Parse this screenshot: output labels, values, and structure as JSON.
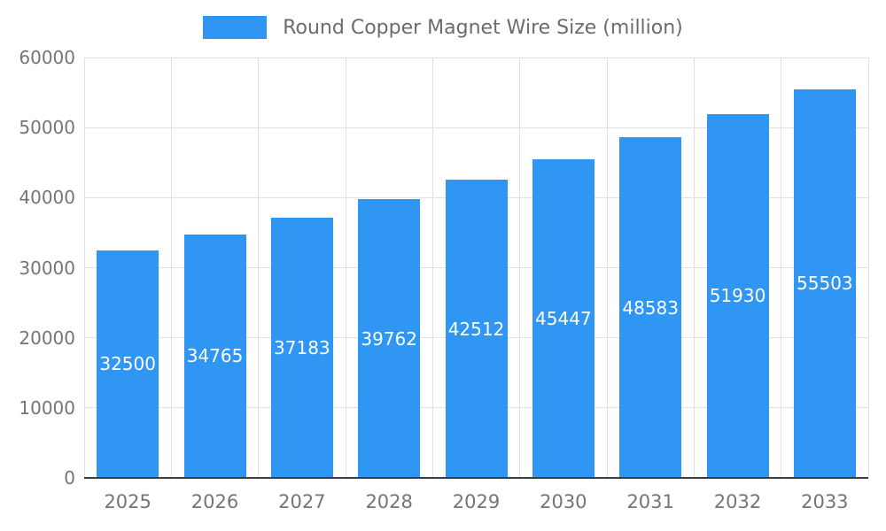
{
  "legend": {
    "label": "Round Copper Magnet Wire Size (million)"
  },
  "colors": {
    "bar": "#2F96F3",
    "value_label": "#ffffff",
    "axis_label": "#757575",
    "legend_label": "#6b6b6b",
    "gridline": "#e0e0e0",
    "baseline": "#3d3d3d"
  },
  "chart_data": {
    "type": "bar",
    "title": "Round Copper Magnet Wire Size (million)",
    "categories": [
      "2025",
      "2026",
      "2027",
      "2028",
      "2029",
      "2030",
      "2031",
      "2032",
      "2033"
    ],
    "values": [
      32500,
      34765,
      37183,
      39762,
      42512,
      45447,
      48583,
      51930,
      55503
    ],
    "xlabel": "",
    "ylabel": "",
    "ylim": [
      0,
      60000
    ],
    "ytick_interval": 10000,
    "ytick_labels": [
      "0",
      "10000",
      "20000",
      "30000",
      "40000",
      "50000",
      "60000"
    ],
    "grid": true,
    "legend_position": "top",
    "value_labels_shown": true,
    "value_label_position": "inside-center"
  }
}
